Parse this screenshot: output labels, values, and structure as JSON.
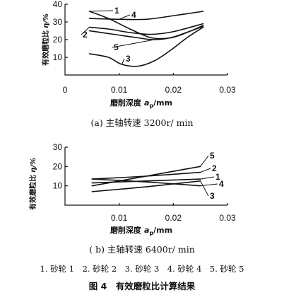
{
  "chart_data": [
    {
      "type": "line",
      "subtitle": "(a) 主轴转速 3200r/ min",
      "xlabel_main": "磨削深度",
      "xlabel_sym": "a",
      "xlabel_sub": "p",
      "xlabel_unit": "/mm",
      "ylabel_main": "有效磨粒比",
      "ylabel_sym": "η/%",
      "xlim": [
        0,
        0.03
      ],
      "ylim": [
        0,
        40
      ],
      "x_ticks": [
        "0",
        "0.01",
        "0.02",
        "0.03"
      ],
      "y_ticks": [
        "10",
        "20",
        "30",
        "40"
      ],
      "series": [
        {
          "name": "1",
          "x": [
            0.0045,
            0.008,
            0.012,
            0.016,
            0.0195,
            0.0225,
            0.0255
          ],
          "y": [
            36,
            32,
            26,
            21,
            21,
            24,
            28
          ]
        },
        {
          "name": "2",
          "x": [
            0.0045,
            0.008,
            0.012,
            0.016,
            0.02,
            0.0255
          ],
          "y": [
            27,
            26,
            24,
            23,
            24.5,
            29
          ]
        },
        {
          "name": "3",
          "x": [
            0.0045,
            0.008,
            0.0105,
            0.0135,
            0.0165,
            0.0195,
            0.0225,
            0.0255
          ],
          "y": [
            12,
            10,
            6,
            5,
            8,
            14,
            21,
            27
          ]
        },
        {
          "name": "4",
          "x": [
            0.0045,
            0.01,
            0.015,
            0.02,
            0.0255
          ],
          "y": [
            32,
            31.5,
            31.5,
            33.5,
            36
          ]
        },
        {
          "name": "5",
          "x": [
            0.0045,
            0.009,
            0.0135,
            0.0165,
            0.02,
            0.0255
          ],
          "y": [
            25,
            23,
            21,
            20,
            21.5,
            27.5
          ]
        }
      ]
    },
    {
      "type": "line",
      "subtitle": "( b) 主轴转速 6400r/ min",
      "xlabel_main": "磨削深度",
      "xlabel_sym": "a",
      "xlabel_sub": "p",
      "xlabel_unit": "/mm",
      "ylabel_main": "有效磨粒比",
      "ylabel_sym": "η/%",
      "xlim": [
        0,
        0.03
      ],
      "ylim": [
        0,
        30
      ],
      "x_ticks": [
        "0.01",
        "0.02",
        "0.03"
      ],
      "y_ticks": [
        "10",
        "20",
        "30"
      ],
      "series": [
        {
          "name": "1",
          "x": [
            0.005,
            0.015,
            0.025
          ],
          "y": [
            11.5,
            12.5,
            13.5
          ]
        },
        {
          "name": "2",
          "x": [
            0.005,
            0.015,
            0.025
          ],
          "y": [
            13.5,
            15,
            17
          ]
        },
        {
          "name": "3",
          "x": [
            0.005,
            0.015,
            0.025
          ],
          "y": [
            7,
            9.5,
            12.5
          ]
        },
        {
          "name": "4",
          "x": [
            0.005,
            0.015,
            0.025
          ],
          "y": [
            13.5,
            12,
            10
          ]
        },
        {
          "name": "5",
          "x": [
            0.005,
            0.015,
            0.025
          ],
          "y": [
            10,
            15,
            20
          ]
        }
      ]
    }
  ],
  "legend_text": "1. 砂轮 1　2. 砂轮 2　3. 砂轮 3　4. 砂轮 4　5. 砂轮 5",
  "figure_caption": "图 4　有效磨粒比计算结果"
}
